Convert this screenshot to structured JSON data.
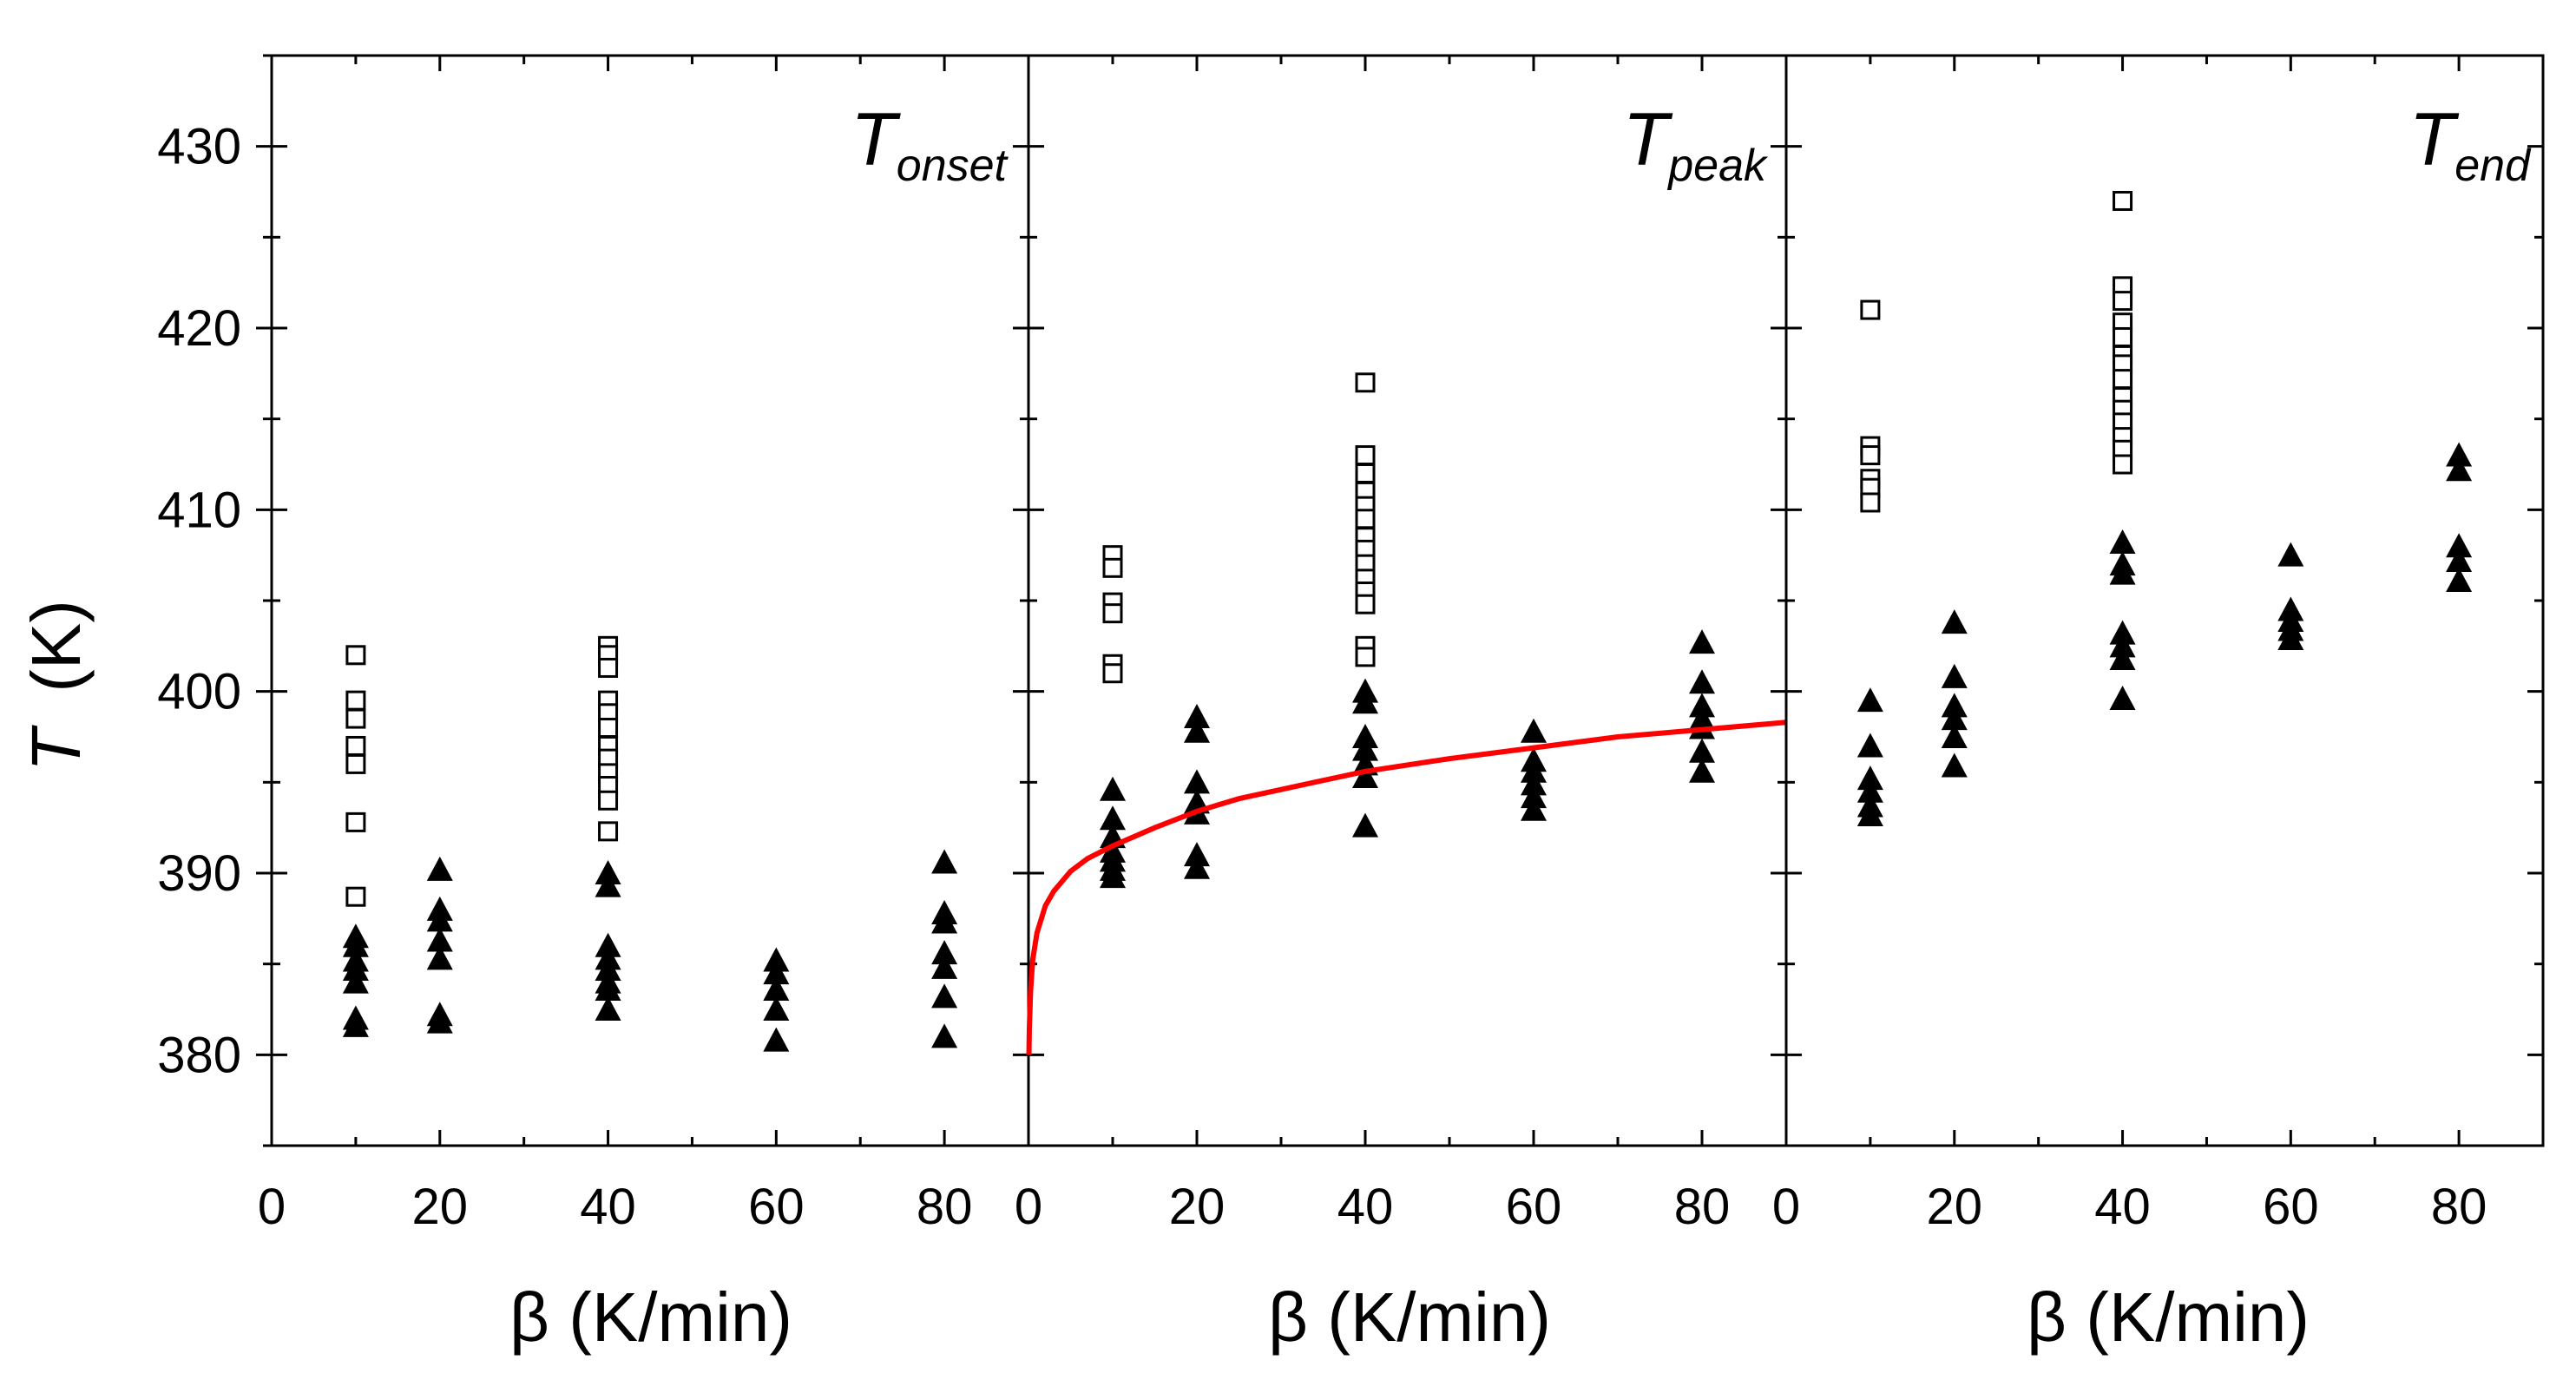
{
  "chart_data": {
    "type": "scatter",
    "ylabel": {
      "symbol": "T",
      "unit": "(K)"
    },
    "ylim": [
      375,
      435
    ],
    "yticks": [
      380,
      390,
      400,
      410,
      420,
      430
    ],
    "line_color": "#ff0000",
    "panels": [
      {
        "title_main": "T",
        "title_sub": "onset",
        "xlabel": "β (K/min)",
        "xlim": [
          0,
          90
        ],
        "xticks": [
          0,
          20,
          40,
          60,
          80
        ],
        "series": [
          {
            "name": "open squares",
            "marker": "square-open",
            "points": [
              [
                10,
                402.0
              ],
              [
                10,
                399.5
              ],
              [
                10,
                398.5
              ],
              [
                10,
                397.0
              ],
              [
                10,
                396.0
              ],
              [
                10,
                392.8
              ],
              [
                10,
                388.7
              ],
              [
                40,
                402.5
              ],
              [
                40,
                402.0
              ],
              [
                40,
                401.3
              ],
              [
                40,
                399.5
              ],
              [
                40,
                398.8
              ],
              [
                40,
                398.0
              ],
              [
                40,
                397.0
              ],
              [
                40,
                396.3
              ],
              [
                40,
                395.5
              ],
              [
                40,
                394.8
              ],
              [
                40,
                394.0
              ],
              [
                40,
                392.3
              ]
            ]
          },
          {
            "name": "filled triangles",
            "marker": "triangle-filled",
            "points": [
              [
                10,
                386.5
              ],
              [
                10,
                386.0
              ],
              [
                10,
                385.2
              ],
              [
                10,
                384.7
              ],
              [
                10,
                384.0
              ],
              [
                10,
                382.0
              ],
              [
                10,
                381.6
              ],
              [
                20,
                390.2
              ],
              [
                20,
                388.0
              ],
              [
                20,
                387.4
              ],
              [
                20,
                386.3
              ],
              [
                20,
                385.3
              ],
              [
                20,
                382.2
              ],
              [
                20,
                381.8
              ],
              [
                40,
                390.0
              ],
              [
                40,
                389.3
              ],
              [
                40,
                386.0
              ],
              [
                40,
                385.3
              ],
              [
                40,
                384.7
              ],
              [
                40,
                384.0
              ],
              [
                40,
                383.6
              ],
              [
                40,
                382.5
              ],
              [
                60,
                385.2
              ],
              [
                60,
                384.5
              ],
              [
                60,
                383.6
              ],
              [
                60,
                382.5
              ],
              [
                60,
                380.8
              ],
              [
                80,
                390.6
              ],
              [
                80,
                387.8
              ],
              [
                80,
                387.3
              ],
              [
                80,
                385.6
              ],
              [
                80,
                384.8
              ],
              [
                80,
                383.2
              ],
              [
                80,
                381.0
              ]
            ]
          }
        ]
      },
      {
        "title_main": "T",
        "title_sub": "peak",
        "xlabel": "β (K/min)",
        "xlim": [
          0,
          90
        ],
        "xticks": [
          0,
          20,
          40,
          60,
          80
        ],
        "series": [
          {
            "name": "open squares",
            "marker": "square-open",
            "points": [
              [
                10,
                407.5
              ],
              [
                10,
                406.8
              ],
              [
                10,
                404.9
              ],
              [
                10,
                404.3
              ],
              [
                10,
                401.5
              ],
              [
                10,
                401.0
              ],
              [
                40,
                417.0
              ],
              [
                40,
                413.0
              ],
              [
                40,
                412.0
              ],
              [
                40,
                411.0
              ],
              [
                40,
                410.2
              ],
              [
                40,
                409.5
              ],
              [
                40,
                408.5
              ],
              [
                40,
                407.8
              ],
              [
                40,
                407.0
              ],
              [
                40,
                406.2
              ],
              [
                40,
                405.5
              ],
              [
                40,
                404.8
              ],
              [
                40,
                402.5
              ],
              [
                40,
                401.9
              ]
            ]
          },
          {
            "name": "filled triangles",
            "marker": "triangle-filled",
            "points": [
              [
                10,
                394.6
              ],
              [
                10,
                393.0
              ],
              [
                10,
                392.0
              ],
              [
                10,
                391.2
              ],
              [
                10,
                390.7
              ],
              [
                10,
                390.2
              ],
              [
                10,
                389.8
              ],
              [
                20,
                398.6
              ],
              [
                20,
                397.8
              ],
              [
                20,
                395.0
              ],
              [
                20,
                393.9
              ],
              [
                20,
                393.3
              ],
              [
                20,
                391.0
              ],
              [
                20,
                390.3
              ],
              [
                40,
                400.0
              ],
              [
                40,
                399.4
              ],
              [
                40,
                397.5
              ],
              [
                40,
                396.8
              ],
              [
                40,
                396.0
              ],
              [
                40,
                395.3
              ],
              [
                40,
                392.6
              ],
              [
                60,
                397.8
              ],
              [
                60,
                396.2
              ],
              [
                60,
                395.6
              ],
              [
                60,
                394.9
              ],
              [
                60,
                394.2
              ],
              [
                60,
                393.5
              ],
              [
                80,
                402.7
              ],
              [
                80,
                400.5
              ],
              [
                80,
                399.2
              ],
              [
                80,
                398.5
              ],
              [
                80,
                398.0
              ],
              [
                80,
                396.7
              ],
              [
                80,
                395.6
              ]
            ]
          },
          {
            "name": "fit curve",
            "marker": "line",
            "points": [
              [
                0.05,
                380.0
              ],
              [
                0.1,
                381.5
              ],
              [
                0.25,
                383.5
              ],
              [
                0.5,
                385.2
              ],
              [
                1,
                386.7
              ],
              [
                2,
                388.2
              ],
              [
                3,
                389.0
              ],
              [
                5,
                390.1
              ],
              [
                7,
                390.8
              ],
              [
                10,
                391.5
              ],
              [
                15,
                392.5
              ],
              [
                20,
                393.4
              ],
              [
                25,
                394.1
              ],
              [
                30,
                394.6
              ],
              [
                35,
                395.1
              ],
              [
                40,
                395.6
              ],
              [
                50,
                396.3
              ],
              [
                60,
                396.9
              ],
              [
                70,
                397.5
              ],
              [
                80,
                397.9
              ],
              [
                90,
                398.3
              ]
            ]
          }
        ]
      },
      {
        "title_main": "T",
        "title_sub": "end",
        "xlabel": "β (K/min)",
        "xlim": [
          0,
          90
        ],
        "xticks": [
          0,
          20,
          40,
          60,
          80
        ],
        "series": [
          {
            "name": "open squares",
            "marker": "square-open",
            "points": [
              [
                10,
                421.0
              ],
              [
                10,
                413.5
              ],
              [
                10,
                413.0
              ],
              [
                10,
                411.7
              ],
              [
                10,
                411.2
              ],
              [
                10,
                410.4
              ],
              [
                40,
                427.0
              ],
              [
                40,
                422.3
              ],
              [
                40,
                421.5
              ],
              [
                40,
                420.3
              ],
              [
                40,
                419.5
              ],
              [
                40,
                418.5
              ],
              [
                40,
                418.0
              ],
              [
                40,
                417.2
              ],
              [
                40,
                416.2
              ],
              [
                40,
                415.5
              ],
              [
                40,
                414.8
              ],
              [
                40,
                414.0
              ],
              [
                40,
                413.3
              ],
              [
                40,
                412.5
              ]
            ]
          },
          {
            "name": "filled triangles",
            "marker": "triangle-filled",
            "points": [
              [
                10,
                399.5
              ],
              [
                10,
                397.0
              ],
              [
                10,
                395.2
              ],
              [
                10,
                394.5
              ],
              [
                10,
                393.7
              ],
              [
                10,
                393.2
              ],
              [
                20,
                403.8
              ],
              [
                20,
                400.8
              ],
              [
                20,
                399.2
              ],
              [
                20,
                398.5
              ],
              [
                20,
                397.5
              ],
              [
                20,
                395.9
              ],
              [
                40,
                408.2
              ],
              [
                40,
                407.0
              ],
              [
                40,
                406.5
              ],
              [
                40,
                403.2
              ],
              [
                40,
                402.5
              ],
              [
                40,
                401.8
              ],
              [
                40,
                399.6
              ],
              [
                60,
                407.5
              ],
              [
                60,
                404.5
              ],
              [
                60,
                403.9
              ],
              [
                60,
                403.4
              ],
              [
                60,
                402.9
              ],
              [
                80,
                413.0
              ],
              [
                80,
                412.2
              ],
              [
                80,
                408.0
              ],
              [
                80,
                407.2
              ],
              [
                80,
                406.1
              ]
            ]
          }
        ]
      }
    ]
  }
}
